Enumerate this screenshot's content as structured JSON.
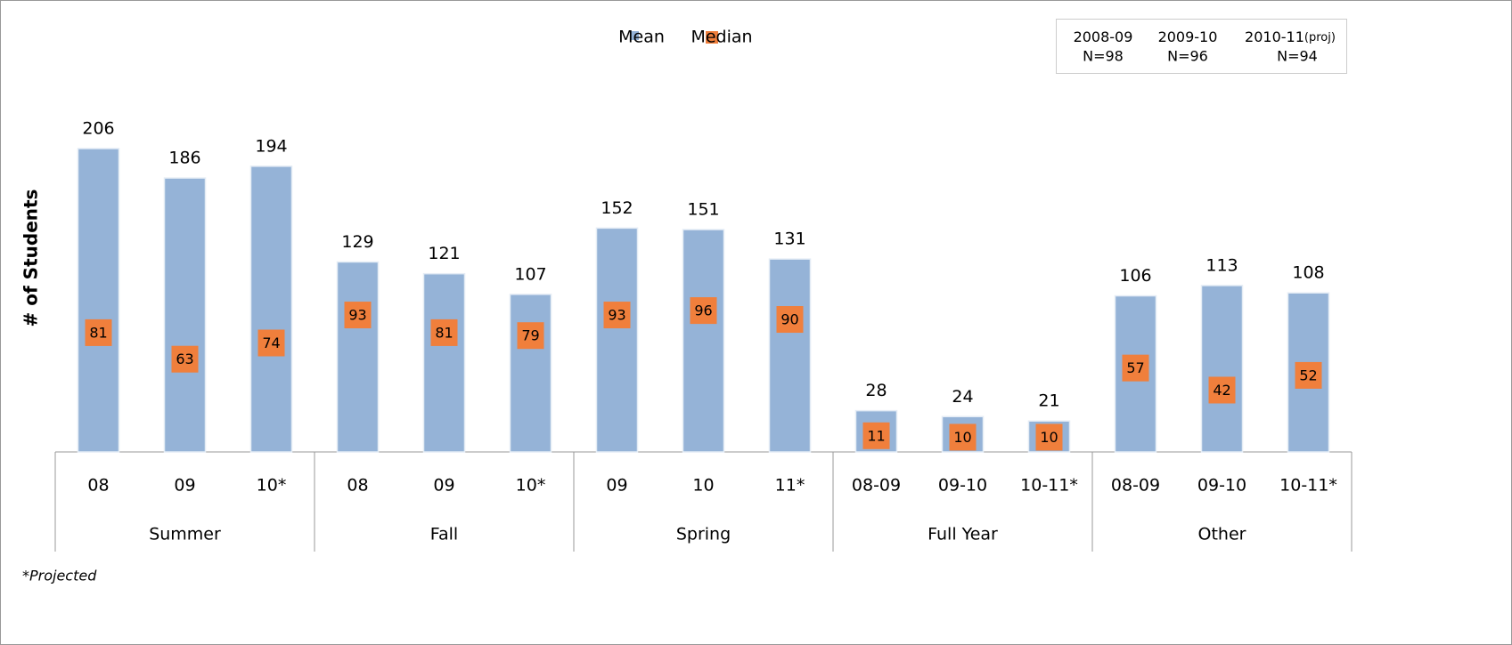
{
  "chart_data": {
    "type": "bar",
    "y_label": "# of Students",
    "groups": [
      {
        "name": "Summer",
        "categories": [
          "08",
          "09",
          "10*"
        ]
      },
      {
        "name": "Fall",
        "categories": [
          "08",
          "09",
          "10*"
        ]
      },
      {
        "name": "Spring",
        "categories": [
          "09",
          "10",
          "11*"
        ]
      },
      {
        "name": "Full Year",
        "categories": [
          "08-09",
          "09-10",
          "10-11*"
        ]
      },
      {
        "name": "Other",
        "categories": [
          "08-09",
          "09-10",
          "10-11*"
        ]
      }
    ],
    "series": [
      {
        "name": "Mean",
        "color": "#95b3d7",
        "marker": "bar",
        "values": [
          206,
          186,
          194,
          129,
          121,
          107,
          152,
          151,
          131,
          28,
          24,
          21,
          106,
          113,
          108
        ]
      },
      {
        "name": "Median",
        "color": "#f07f3c",
        "marker": "square",
        "values": [
          81,
          63,
          74,
          93,
          81,
          79,
          93,
          96,
          90,
          11,
          10,
          10,
          57,
          42,
          52
        ]
      }
    ],
    "sample_sizes": [
      {
        "label": "2008-09",
        "note": "N=98"
      },
      {
        "label": "2009-10",
        "note": "N=96"
      },
      {
        "label": "2010-11",
        "suffix": "(proj)",
        "note": "N=94"
      }
    ],
    "footnote": "*Projected"
  }
}
